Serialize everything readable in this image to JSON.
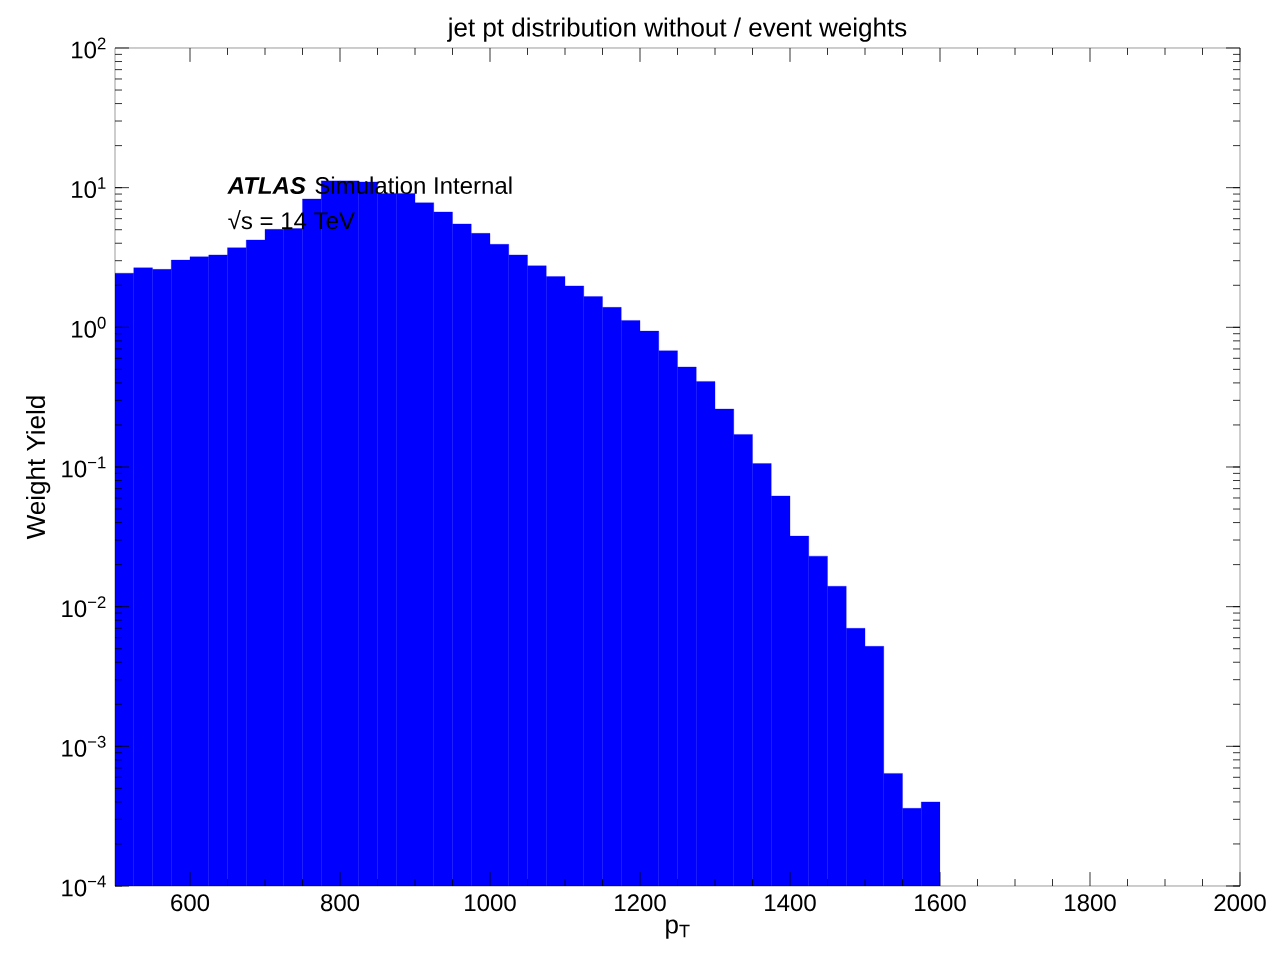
{
  "chart_data": {
    "type": "histogram",
    "title": "jet pt distribution without / event weights",
    "xlabel": "p$_{T}$",
    "ylabel": "Weight Yield",
    "annotations": [
      "ATLAS",
      "Simulation Internal",
      "√s =  14 TeV"
    ],
    "bins": [
      500,
      525,
      550,
      575,
      600,
      625,
      650,
      675,
      700,
      725,
      750,
      775,
      800,
      825,
      850,
      875,
      900,
      925,
      950,
      975,
      1000,
      1025,
      1050,
      1075,
      1100,
      1125,
      1150,
      1175,
      1200,
      1225,
      1250,
      1275,
      1300,
      1325,
      1350,
      1375,
      1400,
      1425,
      1450,
      1475,
      1500,
      1525,
      1550,
      1575,
      1600
    ],
    "values": [
      2.44,
      2.67,
      2.6,
      3.03,
      3.2,
      3.3,
      3.72,
      4.22,
      5.03,
      5.1,
      8.3,
      11.2,
      11.2,
      11.0,
      9.1,
      9.1,
      7.8,
      6.7,
      5.5,
      4.71,
      3.93,
      3.3,
      2.76,
      2.31,
      1.98,
      1.66,
      1.39,
      1.12,
      0.94,
      0.68,
      0.52,
      0.41,
      0.26,
      0.171,
      0.106,
      0.062,
      0.032,
      0.023,
      0.014,
      0.007,
      0.0052,
      0.00064,
      0.00036,
      0.0004
    ],
    "color": "#0000ff",
    "log": "y",
    "grid": false,
    "xlim": [
      500,
      2000
    ],
    "xticks": [
      600,
      800,
      1000,
      1200,
      1400,
      1600,
      1800,
      2000
    ],
    "ylim": [
      0.0001,
      100
    ],
    "yticks": [
      {
        "value": 0.0001,
        "label": "10$^{−4}$"
      },
      {
        "value": 0.001,
        "label": "10$^{−3}$"
      },
      {
        "value": 0.01,
        "label": "10$^{−2}$"
      },
      {
        "value": 0.1,
        "label": "10$^{−1}$"
      },
      {
        "value": 1,
        "label": "10$^{0}$"
      },
      {
        "value": 10,
        "label": "10$^{1}$"
      },
      {
        "value": 100,
        "label": "10$^{2}$"
      }
    ]
  }
}
